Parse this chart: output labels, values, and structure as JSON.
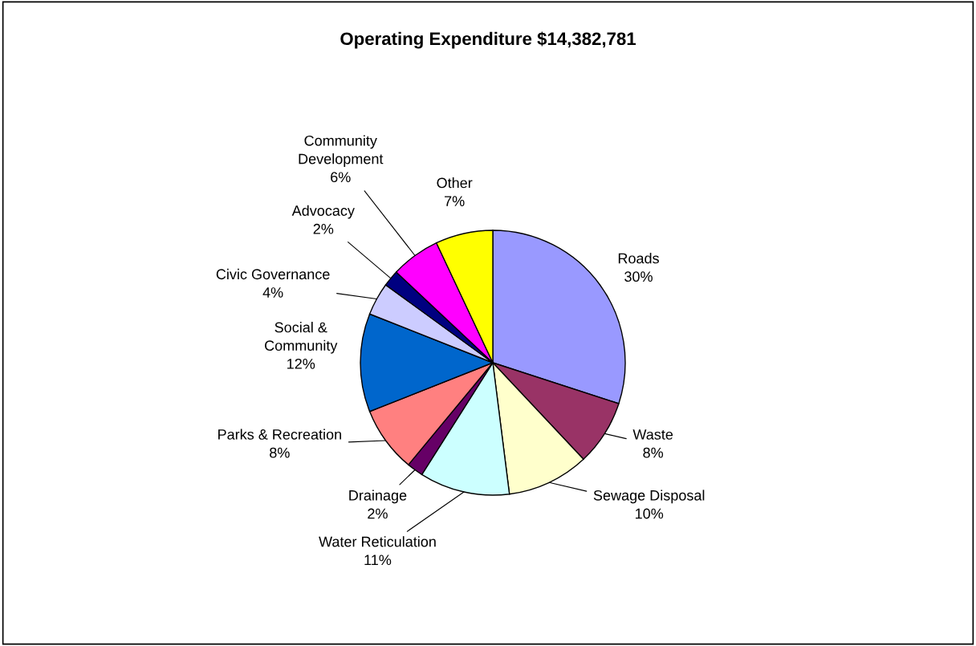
{
  "chart_data": {
    "type": "pie",
    "title": "Operating Expenditure $14,382,781",
    "categories": [
      "Roads",
      "Waste",
      "Sewage Disposal",
      "Water Reticulation",
      "Drainage",
      "Parks & Recreation",
      "Social &\nCommunity",
      "Civic Governance",
      "Advocacy",
      "Community\nDevelopment",
      "Other"
    ],
    "values": [
      30,
      8,
      10,
      11,
      2,
      8,
      12,
      4,
      2,
      6,
      7
    ],
    "value_labels": [
      "30%",
      "8%",
      "10%",
      "11%",
      "2%",
      "8%",
      "12%",
      "4%",
      "2%",
      "6%",
      "7%"
    ],
    "colors": [
      "#9999ff",
      "#993366",
      "#ffffcc",
      "#ccffff",
      "#660066",
      "#ff8080",
      "#0066cc",
      "#ccccff",
      "#000080",
      "#ff00ff",
      "#ffff00"
    ],
    "legend": false
  }
}
